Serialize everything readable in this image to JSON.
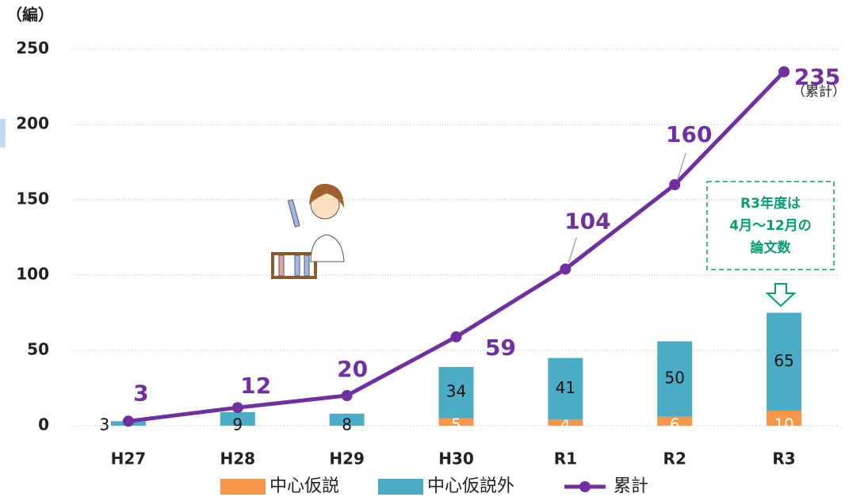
{
  "chart_data": {
    "type": "bar",
    "stacked": true,
    "y_label": "（編）",
    "categories": [
      "H27",
      "H28",
      "H29",
      "H30",
      "R1",
      "R2",
      "R3"
    ],
    "series": [
      {
        "name": "中心仮説",
        "color": "#f79646",
        "values": [
          null,
          null,
          null,
          5,
          4,
          6,
          10
        ]
      },
      {
        "name": "中心仮説外",
        "color": "#4bacc6",
        "values": [
          3,
          9,
          8,
          34,
          41,
          50,
          65
        ]
      },
      {
        "name": "累計",
        "type": "line",
        "color": "#7030a0",
        "values": [
          3,
          12,
          20,
          59,
          104,
          160,
          235
        ]
      }
    ],
    "ylim": [
      0,
      250
    ],
    "yticks": [
      0,
      50,
      100,
      150,
      200,
      250
    ],
    "grid": true,
    "legend": "bottom",
    "annotations": [
      "（累計）",
      "R3年度は",
      "4月～12月の",
      "論文数"
    ]
  }
}
